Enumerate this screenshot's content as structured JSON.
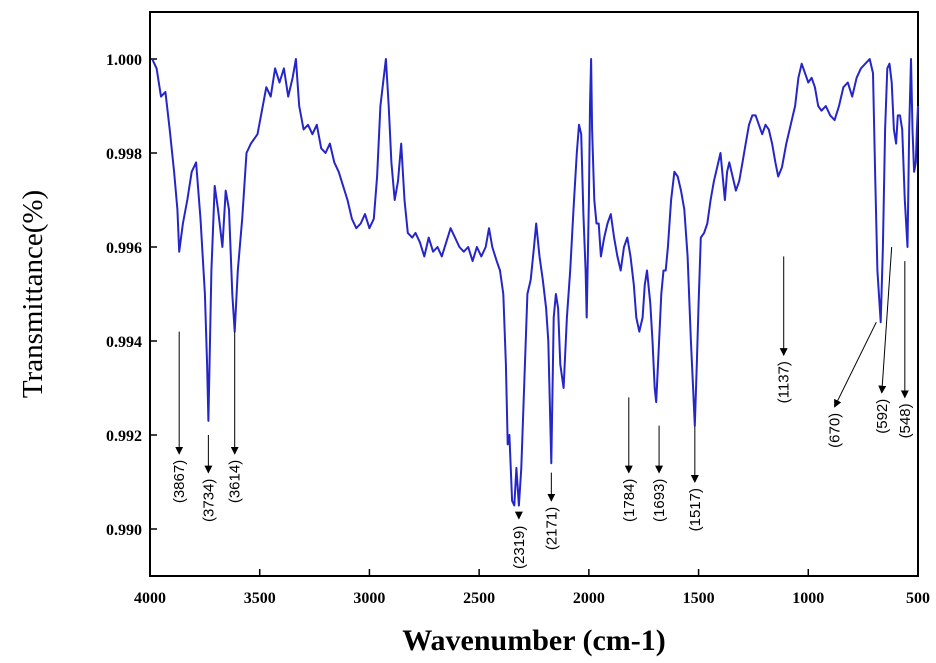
{
  "chart_data": {
    "type": "line",
    "title": "",
    "xlabel": "Wavenumber (cm-1)",
    "ylabel": "Transmittance(%)",
    "xlim": [
      4000,
      500
    ],
    "ylim": [
      0.989,
      1.001
    ],
    "x_ticks": [
      4000,
      3500,
      3000,
      2500,
      2000,
      1500,
      1000,
      500
    ],
    "x_tick_labels": [
      "4000",
      "3500",
      "3000",
      "2500",
      "2000",
      "1500",
      "1000",
      "500"
    ],
    "y_ticks": [
      0.99,
      0.992,
      0.994,
      0.996,
      0.998,
      1.0
    ],
    "y_tick_labels": [
      "0.990",
      "0.992",
      "0.994",
      "0.996",
      "0.998",
      "1.000"
    ],
    "grid": false,
    "line_color": "#2626c8",
    "series": [
      {
        "values": [
          [
            3990,
            1.0
          ],
          [
            3970,
            0.9998
          ],
          [
            3950,
            0.9992
          ],
          [
            3930,
            0.9993
          ],
          [
            3910,
            0.9985
          ],
          [
            3890,
            0.9976
          ],
          [
            3875,
            0.9968
          ],
          [
            3867,
            0.9959
          ],
          [
            3850,
            0.9965
          ],
          [
            3830,
            0.997
          ],
          [
            3810,
            0.9976
          ],
          [
            3790,
            0.9978
          ],
          [
            3770,
            0.9966
          ],
          [
            3750,
            0.995
          ],
          [
            3740,
            0.9935
          ],
          [
            3734,
            0.9923
          ],
          [
            3720,
            0.9955
          ],
          [
            3705,
            0.9973
          ],
          [
            3690,
            0.9968
          ],
          [
            3670,
            0.996
          ],
          [
            3655,
            0.9972
          ],
          [
            3640,
            0.9968
          ],
          [
            3625,
            0.995
          ],
          [
            3614,
            0.9942
          ],
          [
            3600,
            0.9955
          ],
          [
            3580,
            0.9966
          ],
          [
            3560,
            0.998
          ],
          [
            3540,
            0.9982
          ],
          [
            3510,
            0.9984
          ],
          [
            3490,
            0.9989
          ],
          [
            3470,
            0.9994
          ],
          [
            3450,
            0.9992
          ],
          [
            3430,
            0.9998
          ],
          [
            3410,
            0.9995
          ],
          [
            3390,
            0.9998
          ],
          [
            3370,
            0.9992
          ],
          [
            3350,
            0.9996
          ],
          [
            3335,
            1.0
          ],
          [
            3320,
            0.999
          ],
          [
            3300,
            0.9985
          ],
          [
            3280,
            0.9986
          ],
          [
            3260,
            0.9984
          ],
          [
            3240,
            0.9986
          ],
          [
            3220,
            0.9981
          ],
          [
            3200,
            0.998
          ],
          [
            3180,
            0.9982
          ],
          [
            3160,
            0.9978
          ],
          [
            3140,
            0.9976
          ],
          [
            3120,
            0.9973
          ],
          [
            3100,
            0.997
          ],
          [
            3080,
            0.9966
          ],
          [
            3060,
            0.9964
          ],
          [
            3040,
            0.9965
          ],
          [
            3020,
            0.9967
          ],
          [
            3000,
            0.9964
          ],
          [
            2980,
            0.9966
          ],
          [
            2965,
            0.9975
          ],
          [
            2950,
            0.999
          ],
          [
            2935,
            0.9996
          ],
          [
            2925,
            1.0
          ],
          [
            2912,
            0.999
          ],
          [
            2900,
            0.9978
          ],
          [
            2885,
            0.997
          ],
          [
            2870,
            0.9974
          ],
          [
            2855,
            0.9982
          ],
          [
            2840,
            0.997
          ],
          [
            2825,
            0.9963
          ],
          [
            2805,
            0.9962
          ],
          [
            2790,
            0.9963
          ],
          [
            2770,
            0.9961
          ],
          [
            2750,
            0.9958
          ],
          [
            2730,
            0.9962
          ],
          [
            2710,
            0.9959
          ],
          [
            2690,
            0.996
          ],
          [
            2670,
            0.9958
          ],
          [
            2650,
            0.9961
          ],
          [
            2630,
            0.9964
          ],
          [
            2610,
            0.9962
          ],
          [
            2590,
            0.996
          ],
          [
            2570,
            0.9959
          ],
          [
            2550,
            0.996
          ],
          [
            2530,
            0.9957
          ],
          [
            2510,
            0.996
          ],
          [
            2490,
            0.9958
          ],
          [
            2470,
            0.996
          ],
          [
            2455,
            0.9964
          ],
          [
            2440,
            0.996
          ],
          [
            2420,
            0.9957
          ],
          [
            2405,
            0.9955
          ],
          [
            2390,
            0.995
          ],
          [
            2378,
            0.9935
          ],
          [
            2370,
            0.9918
          ],
          [
            2362,
            0.992
          ],
          [
            2350,
            0.9906
          ],
          [
            2340,
            0.9905
          ],
          [
            2330,
            0.9913
          ],
          [
            2319,
            0.9905
          ],
          [
            2308,
            0.9913
          ],
          [
            2295,
            0.993
          ],
          [
            2280,
            0.995
          ],
          [
            2265,
            0.9953
          ],
          [
            2250,
            0.996
          ],
          [
            2240,
            0.9965
          ],
          [
            2225,
            0.9958
          ],
          [
            2210,
            0.9953
          ],
          [
            2195,
            0.9947
          ],
          [
            2185,
            0.994
          ],
          [
            2171,
            0.9914
          ],
          [
            2160,
            0.9945
          ],
          [
            2150,
            0.995
          ],
          [
            2140,
            0.9947
          ],
          [
            2130,
            0.9935
          ],
          [
            2115,
            0.993
          ],
          [
            2100,
            0.9945
          ],
          [
            2085,
            0.9955
          ],
          [
            2070,
            0.9968
          ],
          [
            2055,
            0.998
          ],
          [
            2045,
            0.9986
          ],
          [
            2035,
            0.9984
          ],
          [
            2025,
            0.9967
          ],
          [
            2015,
            0.9955
          ],
          [
            2010,
            0.9945
          ],
          [
            2000,
            0.997
          ],
          [
            1995,
            0.999
          ],
          [
            1990,
            1.0
          ],
          [
            1985,
            0.9985
          ],
          [
            1975,
            0.997
          ],
          [
            1965,
            0.9965
          ],
          [
            1955,
            0.9965
          ],
          [
            1945,
            0.9958
          ],
          [
            1930,
            0.9962
          ],
          [
            1915,
            0.9965
          ],
          [
            1900,
            0.9967
          ],
          [
            1885,
            0.9962
          ],
          [
            1870,
            0.9958
          ],
          [
            1855,
            0.9955
          ],
          [
            1840,
            0.996
          ],
          [
            1825,
            0.9962
          ],
          [
            1810,
            0.9958
          ],
          [
            1795,
            0.9952
          ],
          [
            1784,
            0.9945
          ],
          [
            1770,
            0.9942
          ],
          [
            1755,
            0.9945
          ],
          [
            1745,
            0.9952
          ],
          [
            1735,
            0.9955
          ],
          [
            1720,
            0.9948
          ],
          [
            1710,
            0.994
          ],
          [
            1700,
            0.993
          ],
          [
            1693,
            0.9927
          ],
          [
            1680,
            0.994
          ],
          [
            1670,
            0.995
          ],
          [
            1660,
            0.9955
          ],
          [
            1650,
            0.9955
          ],
          [
            1640,
            0.996
          ],
          [
            1625,
            0.997
          ],
          [
            1610,
            0.9976
          ],
          [
            1595,
            0.9975
          ],
          [
            1580,
            0.9972
          ],
          [
            1565,
            0.9968
          ],
          [
            1550,
            0.9958
          ],
          [
            1535,
            0.994
          ],
          [
            1525,
            0.993
          ],
          [
            1517,
            0.9922
          ],
          [
            1508,
            0.9935
          ],
          [
            1500,
            0.9948
          ],
          [
            1490,
            0.9962
          ],
          [
            1475,
            0.9963
          ],
          [
            1460,
            0.9965
          ],
          [
            1445,
            0.997
          ],
          [
            1430,
            0.9974
          ],
          [
            1415,
            0.9977
          ],
          [
            1400,
            0.998
          ],
          [
            1390,
            0.9975
          ],
          [
            1380,
            0.997
          ],
          [
            1370,
            0.9976
          ],
          [
            1360,
            0.9978
          ],
          [
            1345,
            0.9975
          ],
          [
            1330,
            0.9972
          ],
          [
            1315,
            0.9974
          ],
          [
            1300,
            0.9978
          ],
          [
            1285,
            0.9982
          ],
          [
            1270,
            0.9986
          ],
          [
            1255,
            0.9988
          ],
          [
            1240,
            0.9988
          ],
          [
            1225,
            0.9986
          ],
          [
            1210,
            0.9984
          ],
          [
            1195,
            0.9986
          ],
          [
            1180,
            0.9985
          ],
          [
            1165,
            0.9982
          ],
          [
            1150,
            0.9978
          ],
          [
            1137,
            0.9975
          ],
          [
            1120,
            0.9977
          ],
          [
            1100,
            0.9982
          ],
          [
            1080,
            0.9986
          ],
          [
            1060,
            0.999
          ],
          [
            1045,
            0.9996
          ],
          [
            1030,
            0.9999
          ],
          [
            1015,
            0.9997
          ],
          [
            1000,
            0.9995
          ],
          [
            985,
            0.9996
          ],
          [
            970,
            0.9994
          ],
          [
            955,
            0.999
          ],
          [
            940,
            0.9989
          ],
          [
            920,
            0.999
          ],
          [
            900,
            0.9988
          ],
          [
            880,
            0.9987
          ],
          [
            860,
            0.999
          ],
          [
            840,
            0.9994
          ],
          [
            820,
            0.9995
          ],
          [
            800,
            0.9992
          ],
          [
            780,
            0.9996
          ],
          [
            760,
            0.9998
          ],
          [
            740,
            0.9999
          ],
          [
            720,
            1.0
          ],
          [
            705,
            0.9997
          ],
          [
            695,
            0.9975
          ],
          [
            685,
            0.9955
          ],
          [
            670,
            0.9944
          ],
          [
            660,
            0.996
          ],
          [
            650,
            0.9985
          ],
          [
            640,
            0.9998
          ],
          [
            630,
            0.9999
          ],
          [
            620,
            0.9995
          ],
          [
            610,
            0.9985
          ],
          [
            600,
            0.9982
          ],
          [
            592,
            0.9988
          ],
          [
            582,
            0.9988
          ],
          [
            572,
            0.9985
          ],
          [
            560,
            0.997
          ],
          [
            548,
            0.996
          ],
          [
            540,
            0.9985
          ],
          [
            532,
            1.0
          ],
          [
            525,
            0.9985
          ],
          [
            518,
            0.9976
          ],
          [
            510,
            0.9978
          ],
          [
            505,
            0.9985
          ],
          [
            500,
            0.999
          ]
        ]
      }
    ],
    "annotations": [
      {
        "label": "(3867)",
        "tail": [
          3867,
          0.9942
        ],
        "head": [
          3867,
          0.9916
        ]
      },
      {
        "label": "(3734)",
        "tail": [
          3734,
          0.992
        ],
        "head": [
          3734,
          0.9912
        ]
      },
      {
        "label": "(3614)",
        "tail": [
          3614,
          0.9942
        ],
        "head": [
          3614,
          0.9916
        ]
      },
      {
        "label": "(2319)",
        "tail": [
          2319,
          0.9902
        ],
        "head": [
          2319,
          0.9902
        ]
      },
      {
        "label": "(2171)",
        "tail": [
          2171,
          0.9912
        ],
        "head": [
          2171,
          0.9906
        ]
      },
      {
        "label": "(1784)",
        "tail": [
          1818,
          0.9928
        ],
        "head": [
          1818,
          0.9912
        ]
      },
      {
        "label": "(1693)",
        "tail": [
          1680,
          0.9922
        ],
        "head": [
          1680,
          0.9912
        ]
      },
      {
        "label": "(1517)",
        "tail": [
          1517,
          0.9922
        ],
        "head": [
          1517,
          0.991
        ]
      },
      {
        "label": "(1137)",
        "tail": [
          1112,
          0.9958
        ],
        "head": [
          1112,
          0.9937
        ]
      },
      {
        "label": "(670)",
        "tail": [
          690,
          0.9944
        ],
        "head": [
          880,
          0.9926
        ]
      },
      {
        "label": "(592)",
        "tail": [
          620,
          0.996
        ],
        "head": [
          665,
          0.9929
        ]
      },
      {
        "label": "(548)",
        "tail": [
          560,
          0.9957
        ],
        "head": [
          560,
          0.9928
        ]
      }
    ]
  }
}
